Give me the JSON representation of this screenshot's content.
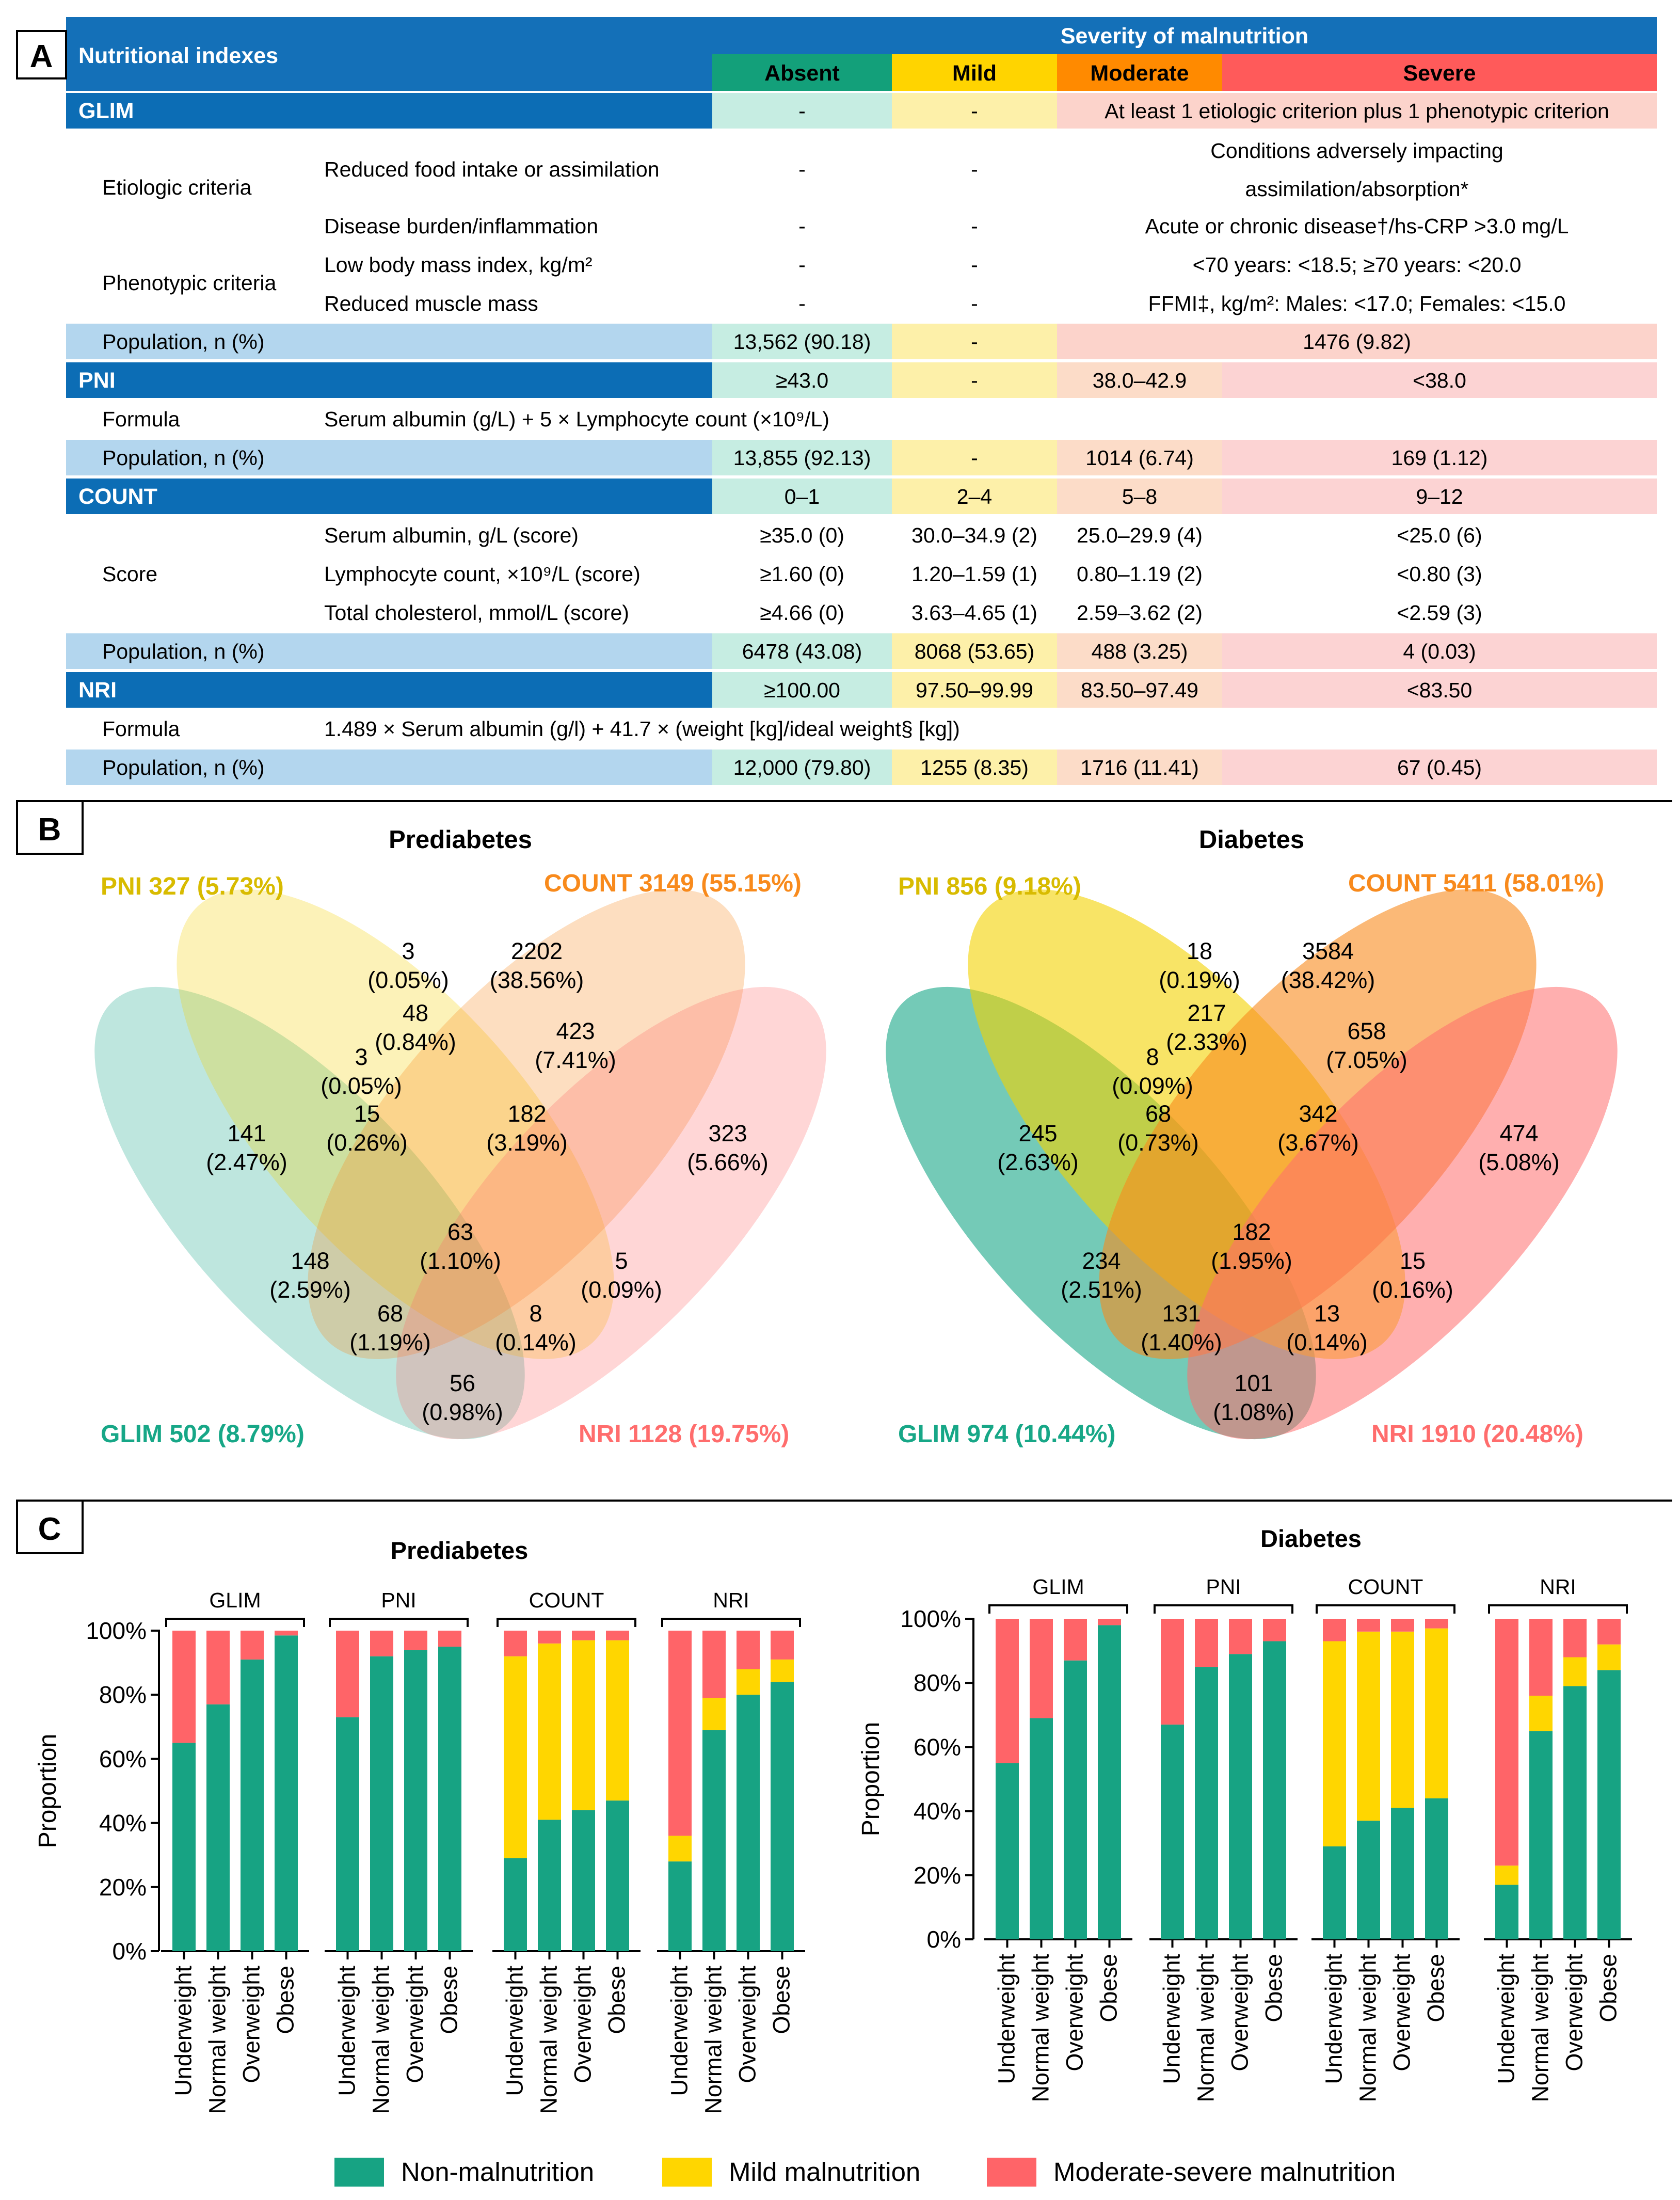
{
  "colors": {
    "header_blue": "#1470b8",
    "index_blue": "#0c6db5",
    "pop_blue": "#b3d6ee",
    "absent_head": "#13a07a",
    "absent_cell": "#c6ede2",
    "mild_head": "#ffd400",
    "mild_cell": "#fdf0a9",
    "moderate_head": "#ff8a00",
    "moderate_cell": "#fcdcc8",
    "severe_head": "#ff5a5a",
    "severe_cell": "#fcd3d3",
    "glim": "#17a787",
    "pni": "#f3d200",
    "count": "#f88a1c",
    "nri": "#ff6d6d",
    "non_malnutrition": "#17a383",
    "mild_malnutrition": "#ffd600",
    "moderate_severe": "#ff6468"
  },
  "panel_a": {
    "label": "A",
    "header": {
      "nutritional_indexes": "Nutritional indexes",
      "severity": "Severity of malnutrition",
      "absent": "Absent",
      "mild": "Mild",
      "moderate": "Moderate",
      "severe": "Severe"
    },
    "glim": {
      "name": "GLIM",
      "absent": "-",
      "mild": "-",
      "modsev": "At least 1 etiologic criterion plus 1 phenotypic criterion",
      "etiologic": "Etiologic criteria",
      "reduced_food": "Reduced food intake or assimilation",
      "reduced_food_absent": "-",
      "reduced_food_mild": "-",
      "reduced_food_modsev_1": "Conditions adversely impacting",
      "reduced_food_modsev_2": "assimilation/absorption*",
      "disease": "Disease burden/inflammation",
      "disease_absent": "-",
      "disease_mild": "-",
      "disease_modsev": "Acute or chronic disease†/hs-CRP >3.0 mg/L",
      "phenotypic": "Phenotypic criteria",
      "bmi": "Low body mass index, kg/m²",
      "bmi_absent": "-",
      "bmi_mild": "-",
      "bmi_modsev": "<70 years: <18.5; ≥70 years: <20.0",
      "muscle": "Reduced muscle mass",
      "muscle_absent": "-",
      "muscle_mild": "-",
      "muscle_modsev": "FFMI‡, kg/m²: Males: <17.0; Females: <15.0",
      "pop_label": "Population, n (%)",
      "pop_absent": "13,562 (90.18)",
      "pop_mild": "-",
      "pop_modsev": "1476 (9.82)"
    },
    "pni": {
      "name": "PNI",
      "absent": "≥43.0",
      "mild": "-",
      "moderate": "38.0–42.9",
      "severe": "<38.0",
      "formula_label": "Formula",
      "formula": "Serum albumin (g/L) + 5 × Lymphocyte count (×10⁹/L)",
      "pop_label": "Population, n (%)",
      "pop_absent": "13,855 (92.13)",
      "pop_mild": "-",
      "pop_moderate": "1014 (6.74)",
      "pop_severe": "169 (1.12)"
    },
    "count": {
      "name": "COUNT",
      "absent": "0–1",
      "mild": "2–4",
      "moderate": "5–8",
      "severe": "9–12",
      "score_label": "Score",
      "albumin": "Serum albumin, g/L (score)",
      "albumin_vals": [
        "≥35.0 (0)",
        "30.0–34.9 (2)",
        "25.0–29.9 (4)",
        "<25.0 (6)"
      ],
      "lymph": "Lymphocyte count, ×10⁹/L (score)",
      "lymph_vals": [
        "≥1.60 (0)",
        "1.20–1.59 (1)",
        "0.80–1.19 (2)",
        "<0.80 (3)"
      ],
      "chol": "Total cholesterol, mmol/L (score)",
      "chol_vals": [
        "≥4.66 (0)",
        "3.63–4.65 (1)",
        "2.59–3.62 (2)",
        "<2.59 (3)"
      ],
      "pop_label": "Population, n (%)",
      "pop_vals": [
        "6478 (43.08)",
        "8068 (53.65)",
        "488 (3.25)",
        "4 (0.03)"
      ]
    },
    "nri": {
      "name": "NRI",
      "absent": "≥100.00",
      "mild": "97.50–99.99",
      "moderate": "83.50–97.49",
      "severe": "<83.50",
      "formula_label": "Formula",
      "formula": "1.489 × Serum albumin (g/l) + 41.7 × (weight [kg]/ideal weight§ [kg])",
      "pop_label": "Population, n (%)",
      "pop_vals": [
        "12,000 (79.80)",
        "1255 (8.35)",
        "1716 (11.41)",
        "67 (0.45)"
      ]
    }
  },
  "panel_b": {
    "label": "B",
    "prediabetes": {
      "title": "Prediabetes",
      "pni_label": "PNI 327 (5.73%)",
      "count_label": "COUNT 3149 (55.15%)",
      "glim_label": "GLIM 502 (8.79%)",
      "nri_label": "NRI 1128 (19.75%)",
      "regions": [
        {
          "n": "3",
          "p": "(0.05%)"
        },
        {
          "n": "2202",
          "p": "(38.56%)"
        },
        {
          "n": "48",
          "p": "(0.84%)"
        },
        {
          "n": "3",
          "p": "(0.05%)"
        },
        {
          "n": "423",
          "p": "(7.41%)"
        },
        {
          "n": "141",
          "p": "(2.47%)"
        },
        {
          "n": "15",
          "p": "(0.26%)"
        },
        {
          "n": "182",
          "p": "(3.19%)"
        },
        {
          "n": "323",
          "p": "(5.66%)"
        },
        {
          "n": "63",
          "p": "(1.10%)"
        },
        {
          "n": "148",
          "p": "(2.59%)"
        },
        {
          "n": "5",
          "p": "(0.09%)"
        },
        {
          "n": "68",
          "p": "(1.19%)"
        },
        {
          "n": "8",
          "p": "(0.14%)"
        },
        {
          "n": "56",
          "p": "(0.98%)"
        }
      ]
    },
    "diabetes": {
      "title": "Diabetes",
      "pni_label": "PNI 856 (9.18%)",
      "count_label": "COUNT 5411 (58.01%)",
      "glim_label": "GLIM 974 (10.44%)",
      "nri_label": "NRI 1910 (20.48%)",
      "regions": [
        {
          "n": "18",
          "p": "(0.19%)"
        },
        {
          "n": "3584",
          "p": "(38.42%)"
        },
        {
          "n": "217",
          "p": "(2.33%)"
        },
        {
          "n": "8",
          "p": "(0.09%)"
        },
        {
          "n": "658",
          "p": "(7.05%)"
        },
        {
          "n": "245",
          "p": "(2.63%)"
        },
        {
          "n": "68",
          "p": "(0.73%)"
        },
        {
          "n": "342",
          "p": "(3.67%)"
        },
        {
          "n": "474",
          "p": "(5.08%)"
        },
        {
          "n": "182",
          "p": "(1.95%)"
        },
        {
          "n": "234",
          "p": "(2.51%)"
        },
        {
          "n": "15",
          "p": "(0.16%)"
        },
        {
          "n": "131",
          "p": "(1.40%)"
        },
        {
          "n": "13",
          "p": "(0.14%)"
        },
        {
          "n": "101",
          "p": "(1.08%)"
        }
      ]
    }
  },
  "panel_c": {
    "label": "C"
  },
  "chart_data": [
    {
      "type": "bar",
      "stacked": true,
      "title": "Prediabetes",
      "ylabel": "Proportion",
      "ylim": [
        0,
        100
      ],
      "yticks": [
        "0%",
        "20%",
        "40%",
        "60%",
        "80%",
        "100%"
      ],
      "groups": [
        "GLIM",
        "PNI",
        "COUNT",
        "NRI"
      ],
      "categories": [
        "Underweight",
        "Normal weight",
        "Overweight",
        "Obese"
      ],
      "series": [
        {
          "name": "Non-malnutrition",
          "values": [
            [
              65,
              77,
              91,
              98.5
            ],
            [
              73,
              92,
              94,
              95
            ],
            [
              29,
              41,
              44,
              47
            ],
            [
              28,
              69,
              80,
              84
            ]
          ]
        },
        {
          "name": "Mild malnutrition",
          "values": [
            [
              0,
              0,
              0,
              0
            ],
            [
              0,
              0,
              0,
              0
            ],
            [
              63,
              55,
              53,
              50
            ],
            [
              8,
              10,
              8,
              7
            ]
          ]
        },
        {
          "name": "Moderate-severe malnutrition",
          "values": [
            [
              35,
              23,
              9,
              1.5
            ],
            [
              27,
              8,
              6,
              5
            ],
            [
              8,
              4,
              3,
              3
            ],
            [
              64,
              21,
              12,
              9
            ]
          ]
        }
      ]
    },
    {
      "type": "bar",
      "stacked": true,
      "title": "Diabetes",
      "ylabel": "Proportion",
      "ylim": [
        0,
        100
      ],
      "yticks": [
        "0%",
        "20%",
        "40%",
        "60%",
        "80%",
        "100%"
      ],
      "groups": [
        "GLIM",
        "PNI",
        "COUNT",
        "NRI"
      ],
      "categories": [
        "Underweight",
        "Normal weight",
        "Overweight",
        "Obese"
      ],
      "series": [
        {
          "name": "Non-malnutrition",
          "values": [
            [
              55,
              69,
              87,
              98
            ],
            [
              67,
              85,
              89,
              93
            ],
            [
              29,
              37,
              41,
              44
            ],
            [
              17,
              65,
              79,
              84
            ]
          ]
        },
        {
          "name": "Mild malnutrition",
          "values": [
            [
              0,
              0,
              0,
              0
            ],
            [
              0,
              0,
              0,
              0
            ],
            [
              64,
              59,
              55,
              53
            ],
            [
              6,
              11,
              9,
              8
            ]
          ]
        },
        {
          "name": "Moderate-severe malnutrition",
          "values": [
            [
              45,
              31,
              13,
              2
            ],
            [
              33,
              15,
              11,
              7
            ],
            [
              7,
              4,
              4,
              3
            ],
            [
              77,
              24,
              12,
              8
            ]
          ]
        }
      ],
      "legend": [
        "Non-malnutrition",
        "Mild malnutrition",
        "Moderate-severe malnutrition"
      ]
    }
  ]
}
